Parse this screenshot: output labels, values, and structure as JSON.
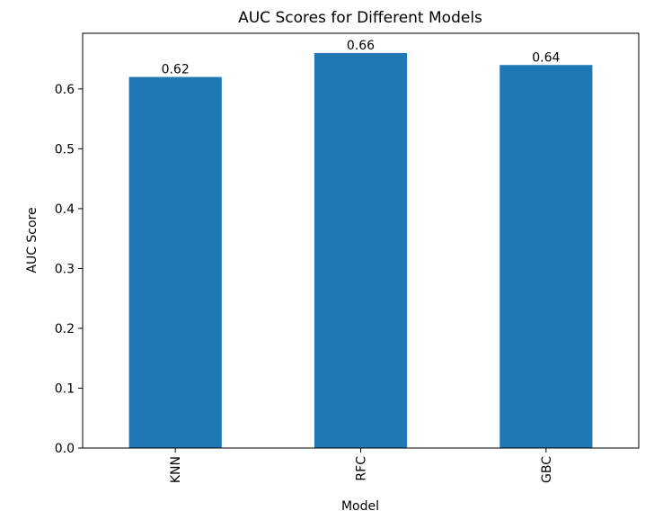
{
  "chart_data": {
    "type": "bar",
    "title": "AUC Scores for Different Models",
    "xlabel": "Model",
    "ylabel": "AUC Score",
    "categories": [
      "KNN",
      "RFC",
      "GBC"
    ],
    "values": [
      0.62,
      0.66,
      0.64
    ],
    "data_labels": [
      "0.62",
      "0.66",
      "0.64"
    ],
    "ylim": [
      0,
      0.693
    ],
    "yticks": [
      0.0,
      0.1,
      0.2,
      0.3,
      0.4,
      0.5,
      0.6
    ],
    "ytick_labels": [
      "0.0",
      "0.1",
      "0.2",
      "0.3",
      "0.4",
      "0.5",
      "0.6"
    ],
    "xtick_rotation": "vertical",
    "grid": false,
    "legend": "none",
    "bar_color": "#1f77b4"
  }
}
